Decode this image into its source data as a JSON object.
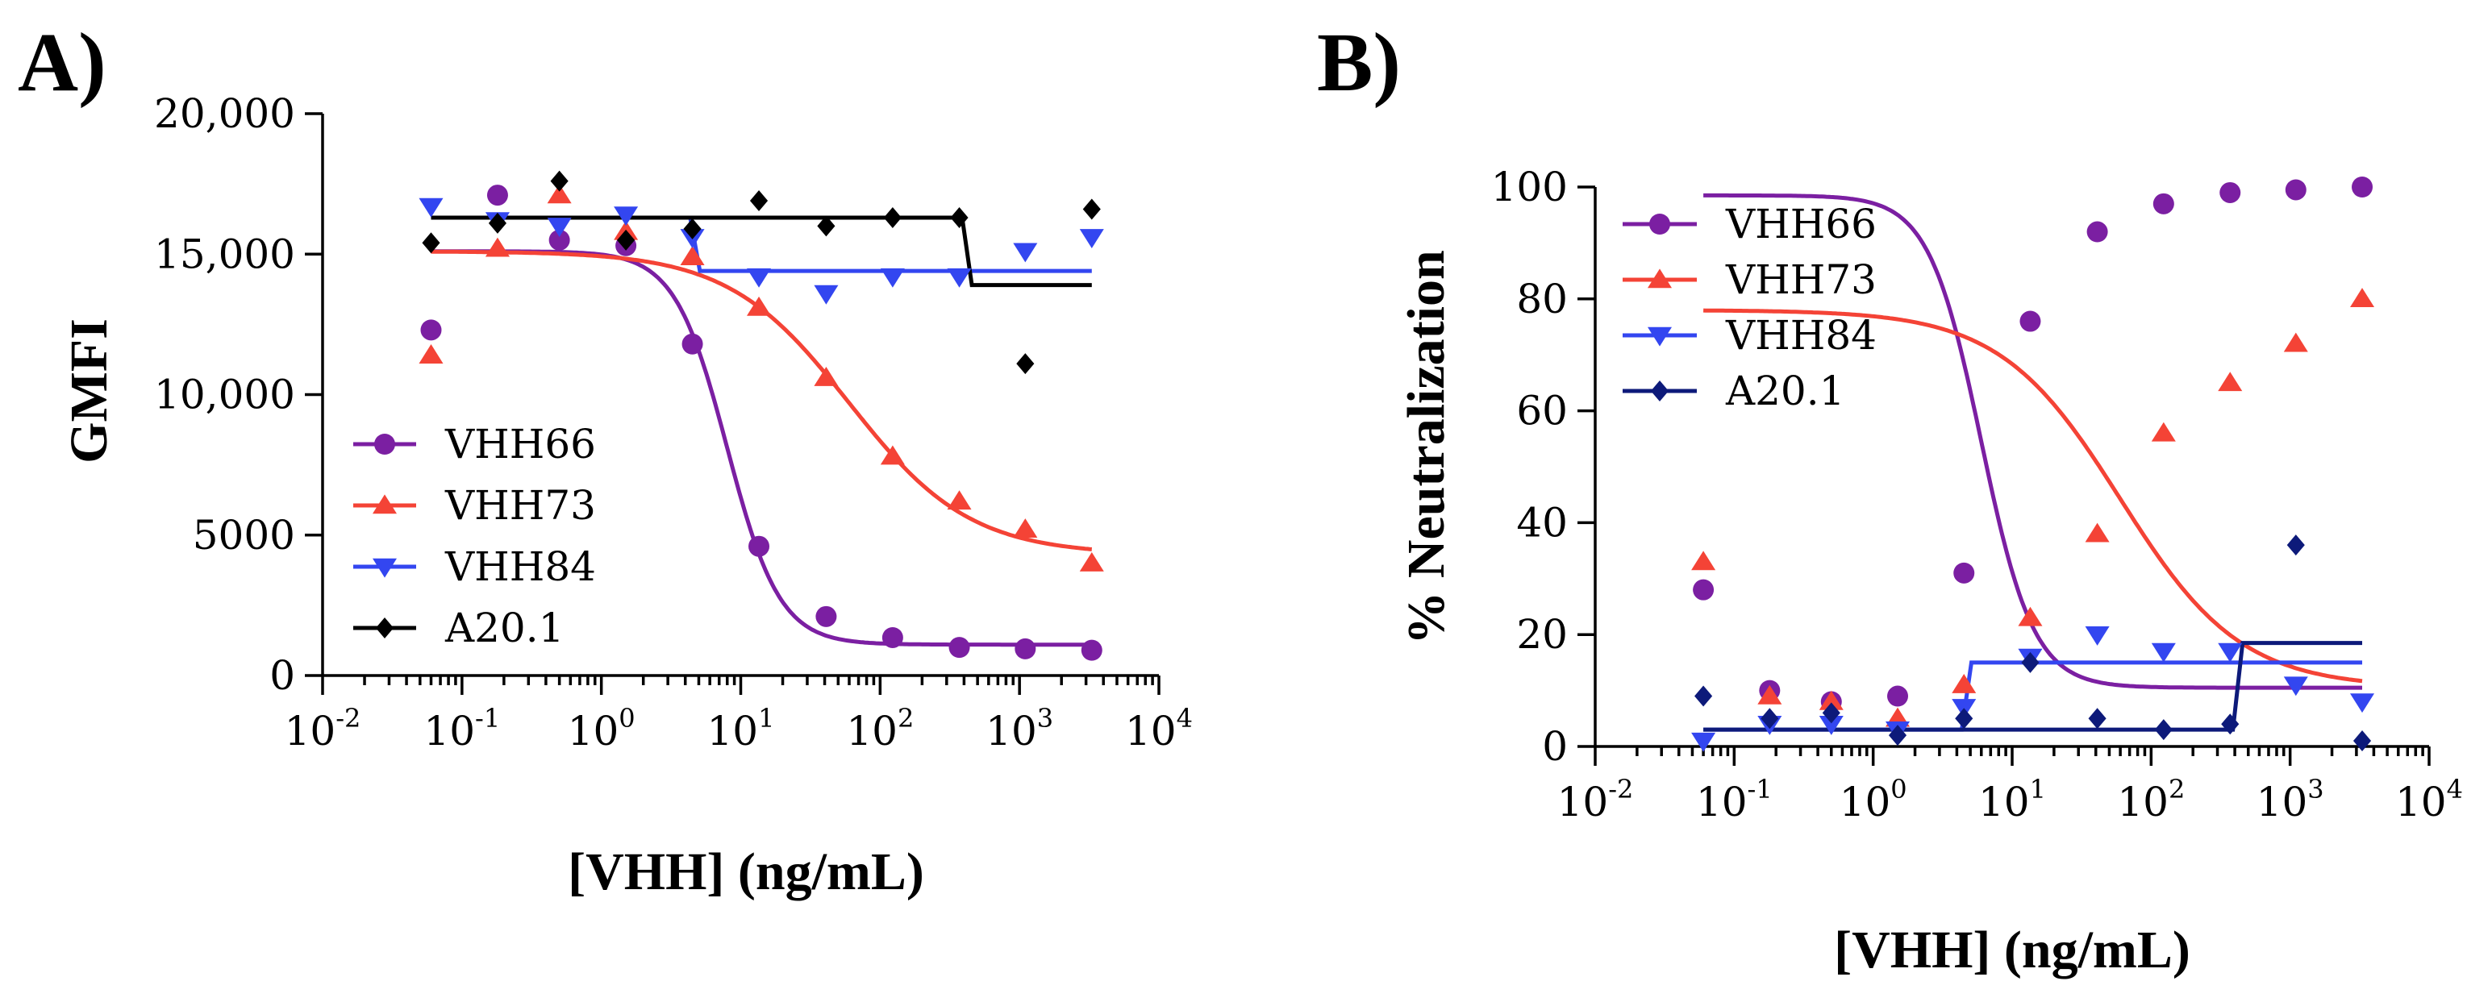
{
  "chart_data": [
    {
      "panel_label": "A)",
      "type": "scatter",
      "xscale": "log",
      "xlabel": "[VHH] (ng/mL)",
      "ylabel": "GMFI",
      "xlim_exp": [
        -2,
        4
      ],
      "ylim": [
        0,
        20000
      ],
      "xticks": [
        {
          "base": "10",
          "exp": "-2"
        },
        {
          "base": "10",
          "exp": "-1"
        },
        {
          "base": "10",
          "exp": "0"
        },
        {
          "base": "10",
          "exp": "1"
        },
        {
          "base": "10",
          "exp": "2"
        },
        {
          "base": "10",
          "exp": "3"
        },
        {
          "base": "10",
          "exp": "4"
        }
      ],
      "yticks": [
        {
          "value": 0,
          "label": "0"
        },
        {
          "value": 5000,
          "label": "5000"
        },
        {
          "value": 10000,
          "label": "10,000"
        },
        {
          "value": 15000,
          "label": "15,000"
        },
        {
          "value": 20000,
          "label": "20,000"
        }
      ],
      "legend_position": "left-center",
      "series": [
        {
          "name": "VHH66",
          "color": "#7B1FA2",
          "marker": "circle",
          "x": [
            0.06,
            0.18,
            0.5,
            1.5,
            4.5,
            13.5,
            41,
            123,
            370,
            1100,
            3300
          ],
          "y": [
            12300,
            17100,
            15500,
            15300,
            11800,
            4600,
            2100,
            1350,
            1000,
            950,
            900
          ],
          "fit": {
            "kind": "sigmoid",
            "top": 15100,
            "bottom": 1100,
            "ec50": 8,
            "hill": 2.3
          }
        },
        {
          "name": "VHH73",
          "color": "#F44336",
          "marker": "triangle-up",
          "x": [
            0.06,
            0.18,
            0.5,
            1.5,
            4.5,
            13.5,
            41,
            123,
            370,
            1100,
            3300
          ],
          "y": [
            11400,
            15200,
            17100,
            15800,
            14900,
            13100,
            10600,
            7800,
            6200,
            5200,
            4000
          ],
          "fit": {
            "kind": "sigmoid",
            "top": 15100,
            "bottom": 4300,
            "ec50": 60,
            "hill": 1.0
          }
        },
        {
          "name": "VHH84",
          "color": "#3346F0",
          "marker": "triangle-down",
          "x": [
            0.06,
            0.18,
            0.5,
            1.5,
            4.5,
            13.5,
            41,
            123,
            370,
            1100,
            3300
          ],
          "y": [
            16700,
            16200,
            16000,
            16400,
            15600,
            14200,
            13600,
            14200,
            14200,
            15100,
            15600
          ],
          "fit": {
            "kind": "step",
            "left": 16300,
            "right": 14400,
            "x_step": 4.7
          }
        },
        {
          "name": "A20.1",
          "color": "#000000",
          "marker": "diamond",
          "x": [
            0.06,
            0.18,
            0.5,
            1.5,
            4.5,
            13.5,
            41,
            123,
            370,
            1100,
            3300
          ],
          "y": [
            15400,
            16100,
            17600,
            15500,
            15900,
            16900,
            16000,
            16300,
            16300,
            11100,
            16600
          ],
          "fit": {
            "kind": "step",
            "left": 16300,
            "right": 13900,
            "x_step": 420
          }
        }
      ]
    },
    {
      "panel_label": "B)",
      "type": "scatter",
      "xscale": "log",
      "xlabel": "[VHH] (ng/mL)",
      "ylabel": "% Neutralization",
      "xlim_exp": [
        -2,
        4
      ],
      "ylim": [
        0,
        100
      ],
      "xticks": [
        {
          "base": "10",
          "exp": "-2"
        },
        {
          "base": "10",
          "exp": "-1"
        },
        {
          "base": "10",
          "exp": "0"
        },
        {
          "base": "10",
          "exp": "1"
        },
        {
          "base": "10",
          "exp": "2"
        },
        {
          "base": "10",
          "exp": "3"
        },
        {
          "base": "10",
          "exp": "4"
        }
      ],
      "yticks": [
        {
          "value": 0,
          "label": "0"
        },
        {
          "value": 20,
          "label": "20"
        },
        {
          "value": 40,
          "label": "40"
        },
        {
          "value": 60,
          "label": "60"
        },
        {
          "value": 80,
          "label": "80"
        },
        {
          "value": 100,
          "label": "100"
        }
      ],
      "legend_position": "top-left",
      "series": [
        {
          "name": "VHH66",
          "color": "#7B1FA2",
          "marker": "circle",
          "x": [
            0.06,
            0.18,
            0.5,
            1.5,
            4.5,
            13.5,
            41,
            123,
            370,
            1100,
            3300
          ],
          "y": [
            28,
            10,
            8,
            9,
            31,
            76,
            92,
            97,
            99,
            99.5,
            100
          ],
          "fit": {
            "kind": "sigmoid",
            "top": 98.5,
            "bottom": 10.5,
            "ec50": 6,
            "hill": 2.3
          }
        },
        {
          "name": "VHH73",
          "color": "#F44336",
          "marker": "triangle-up",
          "x": [
            0.06,
            0.18,
            0.5,
            1.5,
            4.5,
            13.5,
            41,
            123,
            370,
            1100,
            3300
          ],
          "y": [
            33,
            9,
            8,
            5,
            11,
            23,
            38,
            56,
            65,
            72,
            80
          ],
          "fit": {
            "kind": "sigmoid",
            "top": 78,
            "bottom": 10.5,
            "ec50": 60,
            "hill": 1.0
          }
        },
        {
          "name": "VHH84",
          "color": "#3346F0",
          "marker": "triangle-down",
          "x": [
            0.06,
            0.18,
            0.5,
            1.5,
            4.5,
            13.5,
            41,
            123,
            370,
            1100,
            3300
          ],
          "y": [
            1,
            4,
            4,
            3,
            7,
            16,
            20,
            17,
            17,
            11,
            8
          ],
          "fit": {
            "kind": "step",
            "left": 3,
            "right": 15,
            "x_step": 4.7
          }
        },
        {
          "name": "A20.1",
          "color": "#0D1A7A",
          "marker": "diamond",
          "x": [
            0.06,
            0.18,
            0.5,
            1.5,
            4.5,
            13.5,
            41,
            123,
            370,
            1100,
            3300
          ],
          "y": [
            9,
            5,
            6,
            2,
            5,
            15,
            5,
            3,
            4,
            36,
            1
          ],
          "fit": {
            "kind": "step",
            "left": 3,
            "right": 18.5,
            "x_step": 420
          }
        }
      ]
    }
  ]
}
